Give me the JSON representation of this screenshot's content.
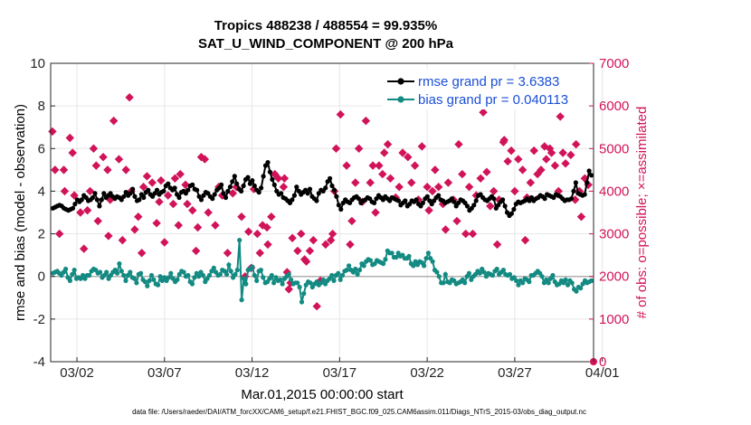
{
  "chart_data": {
    "type": "line",
    "title": "Tropics 488238 / 488554 = 99.935%",
    "subtitle": "SAT_U_WIND_COMPONENT @ 200 hPa",
    "xlabel": "Mar.01,2015 00:00:00 start",
    "ylabel": "rmse and bias (model - observation)",
    "y2label": "# of obs: o=possible; ×=assimilated",
    "footer": "data file: /Users/raeder/DAI/ATM_forcXX/CAM6_setup/f.e21.FHIST_BGC.f09_025.CAM6assim.011/Diags_NTrS_2015-03/obs_diag_output.nc",
    "xlim": [
      0.5,
      31.5
    ],
    "ylim": [
      -4,
      10
    ],
    "y2lim": [
      0,
      7000
    ],
    "x_ticks": [
      2,
      7,
      12,
      17,
      22,
      27,
      32
    ],
    "x_tick_labels": [
      "03/02",
      "03/07",
      "03/12",
      "03/17",
      "03/22",
      "03/27",
      "04/01"
    ],
    "y_ticks": [
      -4,
      -2,
      0,
      2,
      4,
      6,
      8,
      10
    ],
    "y_tick_labels": [
      "-4",
      "-2",
      "0",
      "2",
      "4",
      "6",
      "8",
      "10"
    ],
    "y2_ticks": [
      0,
      1000,
      2000,
      3000,
      4000,
      5000,
      6000,
      7000
    ],
    "y2_tick_labels": [
      "0",
      "1000",
      "2000",
      "3000",
      "4000",
      "5000",
      "6000",
      "7000"
    ],
    "legend_location": "top-right",
    "colors": {
      "rmse": "#000000",
      "bias": "#138a82",
      "obs": "#d1145a",
      "zero_line": "#b0b0b0",
      "legend_text": "#1a4fd6",
      "axis": "#262626"
    },
    "series": [
      {
        "name": "rmse grand pr = 3.6383",
        "values": [
          3.2,
          3.25,
          3.3,
          3.35,
          3.3,
          3.2,
          3.15,
          3.1,
          3.15,
          3.2,
          3.4,
          3.6,
          3.5,
          3.6,
          3.8,
          3.7,
          3.55,
          3.6,
          3.7,
          3.9,
          3.6,
          3.3,
          3.6,
          3.9,
          3.7,
          3.8,
          3.9,
          3.75,
          3.65,
          3.75,
          3.7,
          3.6,
          3.75,
          3.95,
          3.8,
          3.9,
          4.1,
          3.75,
          3.55,
          3.6,
          3.85,
          3.7,
          3.95,
          4.05,
          3.85,
          3.75,
          3.9,
          4.05,
          3.85,
          3.95,
          4.0,
          4.25,
          4.35,
          4.15,
          4.05,
          4.15,
          3.85,
          3.7,
          3.95,
          4.0,
          3.9,
          4.05,
          4.25,
          4.3,
          4.1,
          4.05,
          3.75,
          3.6,
          3.8,
          3.95,
          3.9,
          3.75,
          3.65,
          3.85,
          4.05,
          4.15,
          4.3,
          3.9,
          3.7,
          4.0,
          4.2,
          4.45,
          4.7,
          4.35,
          4.1,
          4.0,
          4.25,
          4.55,
          4.65,
          4.35,
          4.5,
          4.25,
          4.05,
          3.95,
          4.15,
          4.7,
          5.2,
          5.35,
          4.9,
          4.55,
          4.3,
          4.0,
          3.85,
          3.9,
          3.7,
          3.65,
          3.55,
          3.45,
          3.6,
          3.8,
          4.2,
          4.0,
          3.85,
          3.95,
          4.05,
          3.9,
          4.1,
          3.75,
          3.65,
          3.55,
          3.9,
          4.05,
          4.0,
          4.15,
          4.45,
          4.6,
          4.25,
          4.05,
          3.75,
          3.35,
          3.15,
          3.45,
          3.6,
          3.5,
          3.45,
          3.6,
          3.7,
          3.75,
          3.65,
          3.45,
          3.55,
          3.6,
          3.7,
          3.65,
          3.5,
          3.45,
          3.65,
          3.8,
          3.7,
          3.6,
          3.75,
          3.65,
          3.55,
          3.7,
          3.65,
          3.6,
          3.55,
          3.35,
          3.45,
          3.55,
          3.3,
          3.4,
          3.55,
          3.5,
          3.6,
          3.4,
          3.3,
          3.45,
          3.65,
          3.75,
          3.55,
          3.4,
          3.55,
          3.7,
          3.8,
          3.6,
          3.55,
          3.45,
          3.5,
          3.55,
          3.65,
          3.5,
          3.3,
          3.45,
          3.6,
          3.55,
          3.45,
          3.3,
          3.1,
          3.2,
          3.35,
          3.55,
          3.8,
          3.85,
          3.7,
          3.6,
          3.55,
          3.65,
          3.75,
          3.65,
          3.2,
          3.35,
          3.5,
          3.6,
          3.3,
          3.0,
          2.85,
          2.95,
          3.15,
          3.4,
          3.5,
          3.45,
          3.5,
          3.55,
          3.65,
          3.55,
          3.7,
          3.55,
          3.65,
          3.7,
          3.8,
          3.75,
          3.65,
          3.85,
          3.8,
          3.75,
          3.7,
          3.85,
          3.8,
          3.75,
          3.65,
          3.55,
          3.6,
          3.6,
          3.65,
          4.0,
          4.4,
          3.9,
          3.85,
          3.8,
          3.85,
          4.4,
          4.95,
          4.75
        ]
      },
      {
        "name": "bias grand pr = 0.040113",
        "values": [
          0.15,
          0.2,
          0.25,
          0.15,
          0.05,
          0.2,
          0.35,
          -0.05,
          -0.2,
          0.1,
          0.3,
          -0.1,
          -0.05,
          -0.1,
          0.05,
          -0.1,
          0.05,
          0.05,
          0.25,
          0.35,
          0.3,
          0.15,
          0.2,
          -0.05,
          0.05,
          0.2,
          -0.1,
          0.05,
          0.2,
          0.3,
          0.15,
          0.6,
          0.25,
          0.05,
          -0.2,
          0.05,
          0.2,
          -0.05,
          -0.1,
          -0.3,
          0.1,
          0.15,
          -0.15,
          -0.25,
          -0.45,
          -0.2,
          0.05,
          -0.15,
          -0.35,
          -0.4,
          0.0,
          -0.2,
          -0.05,
          -0.2,
          -0.05,
          0.15,
          -0.1,
          -0.25,
          -0.15,
          0.1,
          0.25,
          0.2,
          0.0,
          0.05,
          -0.25,
          -0.35,
          -0.05,
          0.15,
          0.0,
          0.2,
          0.05,
          -0.25,
          -0.1,
          0.05,
          0.25,
          0.4,
          0.2,
          0.05,
          0.1,
          0.3,
          0.25,
          0.1,
          0.55,
          0.25,
          -0.05,
          0.1,
          0.3,
          1.7,
          -1.1,
          -0.1,
          -0.35,
          0.3,
          0.35,
          0.45,
          0.05,
          -0.2,
          0.25,
          0.3,
          -0.05,
          -0.3,
          -0.25,
          -0.1,
          0.05,
          -0.3,
          -0.05,
          -0.2,
          -0.15,
          -0.35,
          -0.1,
          0.0,
          0.1,
          -0.15,
          -0.35,
          -0.3,
          -0.3,
          -0.5,
          -1.2,
          -0.8,
          -0.4,
          -0.25,
          -0.3,
          -0.5,
          -0.35,
          -0.25,
          -0.4,
          -0.3,
          -0.15,
          -0.35,
          -0.2,
          -0.1,
          0.05,
          -0.2,
          0.05,
          0.15,
          -0.15,
          0.05,
          0.25,
          0.3,
          0.5,
          0.3,
          0.2,
          0.35,
          0.1,
          0.3,
          0.6,
          0.5,
          0.7,
          0.8,
          0.75,
          0.55,
          0.6,
          0.75,
          0.7,
          0.65,
          0.6,
          0.8,
          1.2,
          1.1,
          1.1,
          0.9,
          0.9,
          1.1,
          0.95,
          1.0,
          0.85,
          0.85,
          0.95,
          0.6,
          0.5,
          0.7,
          0.55,
          0.7,
          0.65,
          0.5,
          0.85,
          1.1,
          0.85,
          0.7,
          0.3,
          0.2,
          0.0,
          -0.3,
          -0.3,
          0.1,
          -0.25,
          -0.3,
          -0.15,
          -0.2,
          -0.35,
          -0.3,
          -0.25,
          -0.15,
          -0.3,
          0.0,
          0.15,
          -0.15,
          0.0,
          0.1,
          0.25,
          0.15,
          0.35,
          0.2,
          0.0,
          0.15,
          0.1,
          0.05,
          0.25,
          0.35,
          0.1,
          0.2,
          0.3,
          0.1,
          0.05,
          0.1,
          -0.1,
          -0.05,
          -0.2,
          -0.4,
          -0.2,
          -0.3,
          -0.1,
          -0.15,
          -0.25,
          0.05,
          0.05,
          0.15,
          0.25,
          0.15,
          0.0,
          -0.3,
          -0.15,
          -0.3,
          -0.1,
          0.05,
          -0.25,
          -0.4,
          -0.35,
          -0.2,
          -0.3,
          -0.15,
          -0.4,
          -0.2,
          -0.3,
          -0.6,
          -0.7,
          -0.5,
          -0.55,
          -0.35,
          -0.2,
          -0.3,
          -0.25,
          -0.2
        ]
      }
    ],
    "obs_counts": {
      "name": "# of obs",
      "points": [
        [
          0.6,
          5400
        ],
        [
          0.75,
          4500
        ],
        [
          1.0,
          3000
        ],
        [
          1.25,
          4500
        ],
        [
          1.3,
          4000
        ],
        [
          1.6,
          5250
        ],
        [
          1.75,
          4900
        ],
        [
          1.85,
          3900
        ],
        [
          2.2,
          3500
        ],
        [
          2.4,
          2650
        ],
        [
          2.6,
          3550
        ],
        [
          2.75,
          4000
        ],
        [
          2.95,
          5000
        ],
        [
          3.1,
          4600
        ],
        [
          3.2,
          3300
        ],
        [
          3.5,
          4800
        ],
        [
          3.75,
          4500
        ],
        [
          3.8,
          2950
        ],
        [
          3.9,
          3800
        ],
        [
          4.1,
          5650
        ],
        [
          4.4,
          4750
        ],
        [
          4.6,
          2850
        ],
        [
          4.8,
          4500
        ],
        [
          5.0,
          6200
        ],
        [
          5.1,
          4000
        ],
        [
          5.3,
          3100
        ],
        [
          5.5,
          3400
        ],
        [
          5.7,
          2550
        ],
        [
          5.8,
          4100
        ],
        [
          6.0,
          4350
        ],
        [
          6.3,
          4200
        ],
        [
          6.55,
          3250
        ],
        [
          6.7,
          3750
        ],
        [
          6.8,
          4250
        ],
        [
          7.0,
          2800
        ],
        [
          7.2,
          3900
        ],
        [
          7.5,
          3700
        ],
        [
          7.6,
          4300
        ],
        [
          7.8,
          3200
        ],
        [
          7.9,
          4400
        ],
        [
          8.2,
          4150
        ],
        [
          8.3,
          3700
        ],
        [
          8.6,
          3550
        ],
        [
          8.8,
          2600
        ],
        [
          8.9,
          3150
        ],
        [
          9.1,
          4800
        ],
        [
          9.3,
          4750
        ],
        [
          9.5,
          3500
        ],
        [
          9.9,
          3200
        ],
        [
          10.1,
          4100
        ],
        [
          10.3,
          3900
        ],
        [
          10.6,
          2550
        ],
        [
          10.9,
          3950
        ],
        [
          11.1,
          4100
        ],
        [
          11.4,
          3400
        ],
        [
          11.6,
          2000
        ],
        [
          11.8,
          3050
        ],
        [
          11.95,
          2200
        ],
        [
          12.1,
          4050
        ],
        [
          12.3,
          3000
        ],
        [
          12.45,
          2550
        ],
        [
          12.6,
          3200
        ],
        [
          12.85,
          3150
        ],
        [
          12.9,
          2750
        ],
        [
          13.1,
          3400
        ],
        [
          13.3,
          4400
        ],
        [
          13.5,
          4300
        ],
        [
          13.85,
          4300
        ],
        [
          13.8,
          4100
        ],
        [
          14.0,
          2100
        ],
        [
          14.1,
          1700
        ],
        [
          14.2,
          1850
        ],
        [
          14.3,
          2900
        ],
        [
          14.6,
          2600
        ],
        [
          14.8,
          3000
        ],
        [
          15.0,
          2400
        ],
        [
          15.1,
          2350
        ],
        [
          15.3,
          2600
        ],
        [
          15.5,
          2850
        ],
        [
          15.7,
          1300
        ],
        [
          15.9,
          1900
        ],
        [
          16.2,
          2750
        ],
        [
          16.5,
          2850
        ],
        [
          16.6,
          3000
        ],
        [
          16.7,
          4000
        ],
        [
          16.8,
          5000
        ],
        [
          17.05,
          5800
        ],
        [
          17.4,
          4600
        ],
        [
          17.6,
          2750
        ],
        [
          17.7,
          3300
        ],
        [
          17.9,
          4200
        ],
        [
          18.1,
          5000
        ],
        [
          18.3,
          3750
        ],
        [
          18.5,
          5650
        ],
        [
          18.75,
          4200
        ],
        [
          18.9,
          4600
        ],
        [
          19.05,
          3500
        ],
        [
          19.25,
          4600
        ],
        [
          19.45,
          4400
        ],
        [
          19.55,
          4900
        ],
        [
          19.75,
          5100
        ],
        [
          19.9,
          4300
        ],
        [
          20.2,
          3850
        ],
        [
          20.4,
          4100
        ],
        [
          20.6,
          4900
        ],
        [
          20.9,
          4800
        ],
        [
          21.1,
          4200
        ],
        [
          21.3,
          4600
        ],
        [
          21.5,
          3800
        ],
        [
          21.7,
          5050
        ],
        [
          22.0,
          4100
        ],
        [
          22.1,
          3550
        ],
        [
          22.3,
          4000
        ],
        [
          22.45,
          4500
        ],
        [
          22.65,
          4100
        ],
        [
          22.9,
          3700
        ],
        [
          23.05,
          3100
        ],
        [
          23.2,
          4200
        ],
        [
          23.5,
          3800
        ],
        [
          23.7,
          3300
        ],
        [
          23.8,
          5100
        ],
        [
          24.0,
          4400
        ],
        [
          24.2,
          3000
        ],
        [
          24.4,
          4100
        ],
        [
          24.6,
          3000
        ],
        [
          24.8,
          3900
        ],
        [
          25.05,
          4300
        ],
        [
          25.2,
          5850
        ],
        [
          25.4,
          4450
        ],
        [
          25.6,
          3650
        ],
        [
          25.8,
          4000
        ],
        [
          26.0,
          2750
        ],
        [
          26.1,
          3800
        ],
        [
          26.35,
          5150
        ],
        [
          26.4,
          5200
        ],
        [
          26.6,
          4700
        ],
        [
          26.8,
          4950
        ],
        [
          27.0,
          4000
        ],
        [
          27.2,
          4750
        ],
        [
          27.45,
          4500
        ],
        [
          27.6,
          2850
        ],
        [
          27.7,
          3850
        ],
        [
          27.9,
          4200
        ],
        [
          28.1,
          4950
        ],
        [
          28.3,
          4400
        ],
        [
          28.5,
          4500
        ],
        [
          28.7,
          5050
        ],
        [
          28.8,
          4750
        ],
        [
          29.0,
          5000
        ],
        [
          29.1,
          4900
        ],
        [
          29.3,
          4600
        ],
        [
          29.5,
          4000
        ],
        [
          29.6,
          5750
        ],
        [
          29.75,
          4900
        ],
        [
          29.9,
          4650
        ],
        [
          30.2,
          4850
        ],
        [
          30.45,
          3800
        ],
        [
          30.5,
          5100
        ],
        [
          30.7,
          4000
        ],
        [
          30.8,
          3400
        ],
        [
          31.0,
          4300
        ],
        [
          31.2,
          4150
        ]
      ]
    }
  }
}
